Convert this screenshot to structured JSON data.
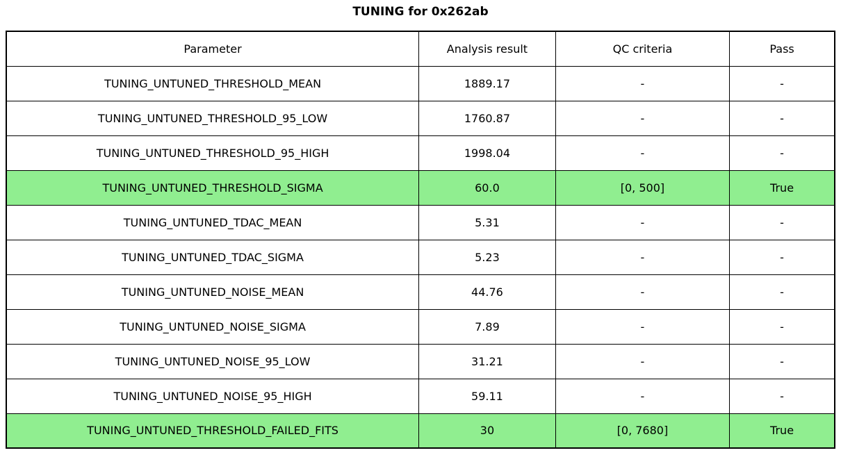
{
  "title": "TUNING for 0x262ab",
  "colors": {
    "background": "#ffffff",
    "border": "#000000",
    "text": "#000000",
    "highlight_green": "#90ee90"
  },
  "chart_data": {
    "type": "table",
    "title": "TUNING for 0x262ab",
    "columns": [
      "Parameter",
      "Analysis result",
      "QC criteria",
      "Pass"
    ],
    "rows": [
      [
        "TUNING_UNTUNED_THRESHOLD_MEAN",
        "1889.17",
        "-",
        "-"
      ],
      [
        "TUNING_UNTUNED_THRESHOLD_95_LOW",
        "1760.87",
        "-",
        "-"
      ],
      [
        "TUNING_UNTUNED_THRESHOLD_95_HIGH",
        "1998.04",
        "-",
        "-"
      ],
      [
        "TUNING_UNTUNED_THRESHOLD_SIGMA",
        "60.0",
        "[0, 500]",
        "True"
      ],
      [
        "TUNING_UNTUNED_TDAC_MEAN",
        "5.31",
        "-",
        "-"
      ],
      [
        "TUNING_UNTUNED_TDAC_SIGMA",
        "5.23",
        "-",
        "-"
      ],
      [
        "TUNING_UNTUNED_NOISE_MEAN",
        "44.76",
        "-",
        "-"
      ],
      [
        "TUNING_UNTUNED_NOISE_SIGMA",
        "7.89",
        "-",
        "-"
      ],
      [
        "TUNING_UNTUNED_NOISE_95_LOW",
        "31.21",
        "-",
        "-"
      ],
      [
        "TUNING_UNTUNED_NOISE_95_HIGH",
        "59.11",
        "-",
        "-"
      ],
      [
        "TUNING_UNTUNED_THRESHOLD_FAILED_FITS",
        "30",
        "[0, 7680]",
        "True"
      ]
    ],
    "highlighted_rows": [
      3,
      10
    ],
    "highlight_color": "#90ee90",
    "legend_position": "none",
    "grid": "full-cell-borders"
  }
}
